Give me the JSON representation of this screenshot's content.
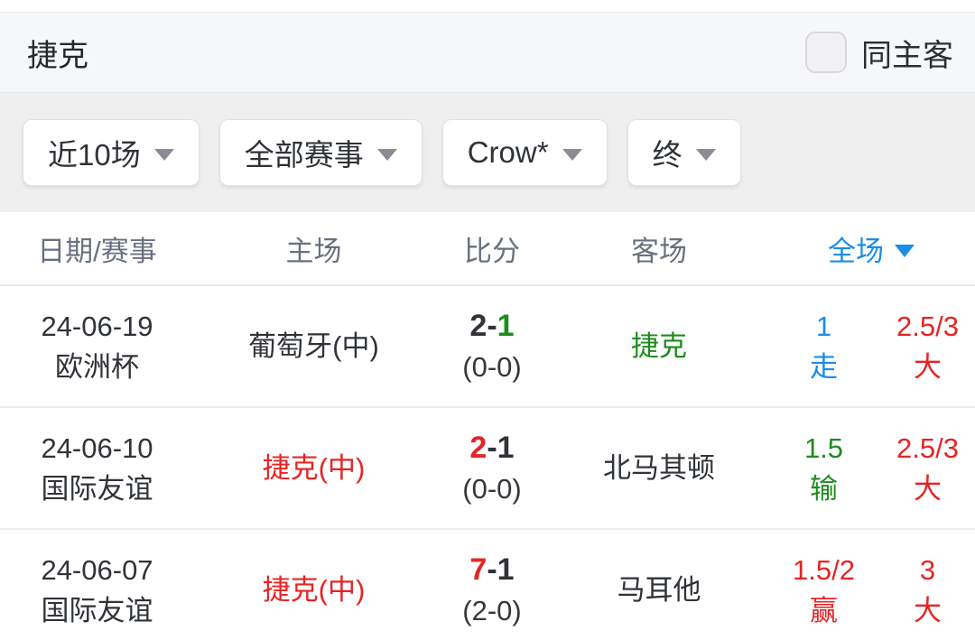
{
  "colors": {
    "dark": "#303338",
    "red": "#e62424",
    "green": "#1e8c1e",
    "blue": "#1b8ce8"
  },
  "title_bar": {
    "title": "捷克",
    "same_venue_label": "同主客"
  },
  "filter_bar": {
    "dropdowns": [
      {
        "label": "近10场"
      },
      {
        "label": "全部赛事"
      },
      {
        "label": "Crow*"
      },
      {
        "label": "终"
      }
    ]
  },
  "table": {
    "columns": {
      "date": "日期/赛事",
      "home": "主场",
      "score": "比分",
      "away": "客场",
      "full": "全场"
    },
    "score_separator": "-",
    "rows": [
      {
        "date": "24-06-19",
        "competition": "欧洲杯",
        "home": "葡萄牙(中)",
        "home_color": "dark",
        "score_home": "2",
        "score_home_color": "dark",
        "score_away": "1",
        "score_away_color": "green",
        "half": "(0-0)",
        "away": "捷克",
        "away_color": "green",
        "handicap_value": "1",
        "handicap_result": "走",
        "handicap_color": "blue",
        "ou_value": "2.5/3",
        "ou_result": "大",
        "ou_color": "red"
      },
      {
        "date": "24-06-10",
        "competition": "国际友谊",
        "home": "捷克(中)",
        "home_color": "red",
        "score_home": "2",
        "score_home_color": "red",
        "score_away": "1",
        "score_away_color": "dark",
        "half": "(0-0)",
        "away": "北马其顿",
        "away_color": "dark",
        "handicap_value": "1.5",
        "handicap_result": "输",
        "handicap_color": "green",
        "ou_value": "2.5/3",
        "ou_result": "大",
        "ou_color": "red"
      },
      {
        "date": "24-06-07",
        "competition": "国际友谊",
        "home": "捷克(中)",
        "home_color": "red",
        "score_home": "7",
        "score_home_color": "red",
        "score_away": "1",
        "score_away_color": "dark",
        "half": "(2-0)",
        "away": "马耳他",
        "away_color": "dark",
        "handicap_value": "1.5/2",
        "handicap_result": "赢",
        "handicap_color": "red",
        "ou_value": "3",
        "ou_result": "大",
        "ou_color": "red"
      }
    ]
  }
}
